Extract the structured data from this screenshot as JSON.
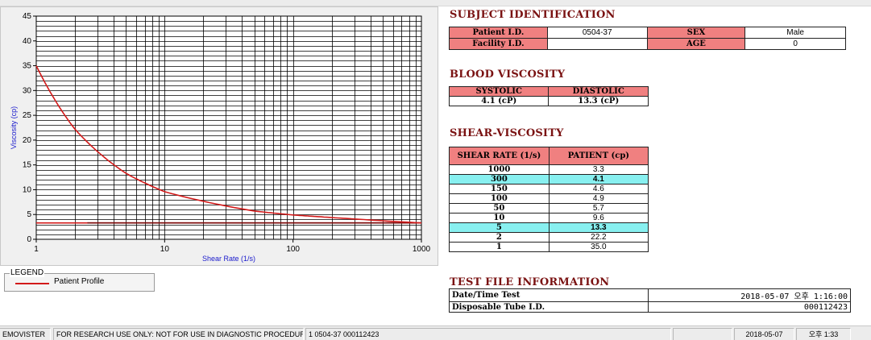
{
  "chart_data": {
    "type": "line",
    "xscale": "log",
    "xlim": [
      1,
      1000
    ],
    "ylim": [
      0,
      45
    ],
    "x_ticks": [
      "1",
      "10",
      "100",
      "1000"
    ],
    "y_ticks": [
      "0",
      "5",
      "10",
      "15",
      "20",
      "25",
      "30",
      "35",
      "40",
      "45"
    ],
    "xlabel": "Shear Rate (1/s)",
    "ylabel": "Viscosity (cp)",
    "grid": true,
    "series": [
      {
        "name": "Patient Profile",
        "color": "#d21a1a",
        "points": [
          [
            1,
            35.0
          ],
          [
            2,
            22.2
          ],
          [
            5,
            13.3
          ],
          [
            10,
            9.6
          ],
          [
            50,
            5.7
          ],
          [
            100,
            4.9
          ],
          [
            150,
            4.6
          ],
          [
            300,
            4.1
          ],
          [
            1000,
            3.3
          ]
        ]
      }
    ],
    "reference_lines": [
      {
        "color": "#d21a1a",
        "points": [
          [
            1,
            3.3
          ],
          [
            1000,
            3.3
          ]
        ]
      },
      {
        "color": "#7a0a0a",
        "points": [
          [
            2.5,
            3.3
          ],
          [
            1000,
            3.3
          ]
        ]
      }
    ]
  },
  "legend": {
    "title": "LEGEND",
    "items": [
      {
        "label": "Patient Profile",
        "color": "#d21a1a"
      }
    ]
  },
  "subject": {
    "title": "SUBJECT IDENTIFICATION",
    "patient_id_label": "Patient I.D.",
    "patient_id": "0504-37",
    "sex_label": "SEX",
    "sex": "Male",
    "facility_id_label": "Facility I.D.",
    "facility_id": "",
    "age_label": "AGE",
    "age": "0"
  },
  "blood": {
    "title": "BLOOD VISCOSITY",
    "systolic_label": "SYSTOLIC",
    "diastolic_label": "DIASTOLIC",
    "systolic": "4.1 (cP)",
    "diastolic": "13.3 (cP)"
  },
  "shear": {
    "title": "SHEAR-VISCOSITY",
    "col_rate": "SHEAR RATE (1/s)",
    "col_patient": "PATIENT (cp)",
    "rows": [
      {
        "rate": "1000",
        "value": "3.3",
        "hl": false
      },
      {
        "rate": "300",
        "value": "4.1",
        "hl": true
      },
      {
        "rate": "150",
        "value": "4.6",
        "hl": false
      },
      {
        "rate": "100",
        "value": "4.9",
        "hl": false
      },
      {
        "rate": "50",
        "value": "5.7",
        "hl": false
      },
      {
        "rate": "10",
        "value": "9.6",
        "hl": false
      },
      {
        "rate": "5",
        "value": "13.3",
        "hl": true
      },
      {
        "rate": "2",
        "value": "22.2",
        "hl": false
      },
      {
        "rate": "1",
        "value": "35.0",
        "hl": false
      }
    ]
  },
  "testfile": {
    "title": "TEST FILE INFORMATION",
    "date_label": "Date/Time Test",
    "date_value": "2018-05-07   오후 1:16:00",
    "tube_label": "Disposable Tube I.D.",
    "tube_value": "000112423"
  },
  "statusbar": {
    "app": "EMOVISTER",
    "notice": "FOR RESEARCH USE ONLY: NOT FOR USE IN DIAGNOSTIC PROCEDURES",
    "record": "1  0504-37  000112423",
    "date": "2018-05-07",
    "time": "오후 1:33"
  }
}
